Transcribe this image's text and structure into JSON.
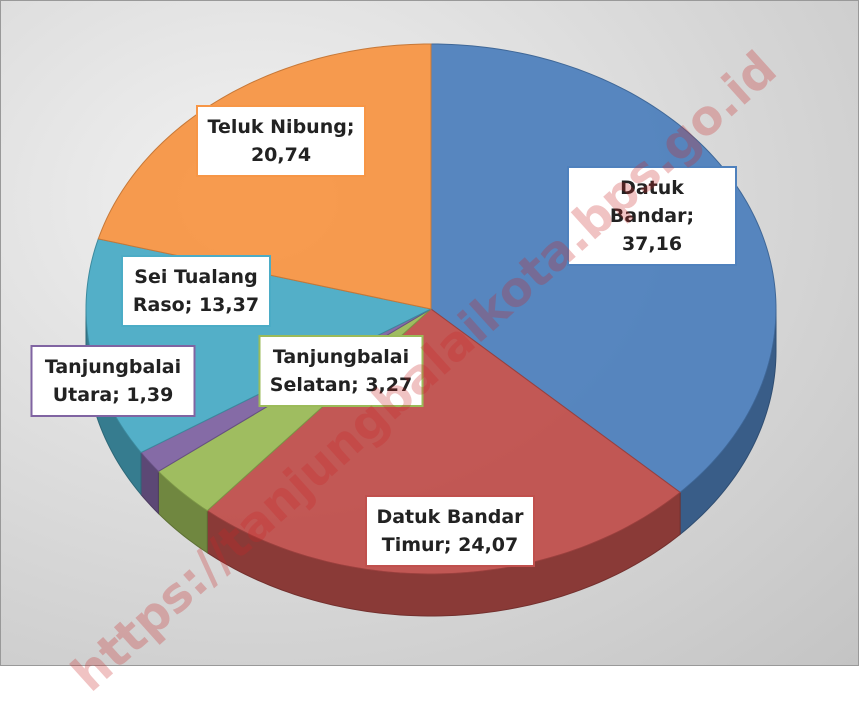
{
  "chart_data": {
    "type": "pie",
    "values": [
      37.16,
      24.07,
      3.27,
      1.39,
      13.37,
      20.74
    ],
    "value_labels": [
      "Datuk Bandar; 37,16",
      "Datuk Bandar Timur; 24,07",
      "Tanjungbalai Selatan; 3,27",
      "Tanjungbalai Utara; 1,39",
      "Sei Tualang Raso; 13,37",
      "Teluk Nibung; 20,74"
    ],
    "colors": [
      "#4f81bd",
      "#c0504d",
      "#9bbb59",
      "#8064a2",
      "#4bacc6",
      "#f79646"
    ],
    "watermark": "https://tanjungbalaikota.bps.go.id"
  }
}
